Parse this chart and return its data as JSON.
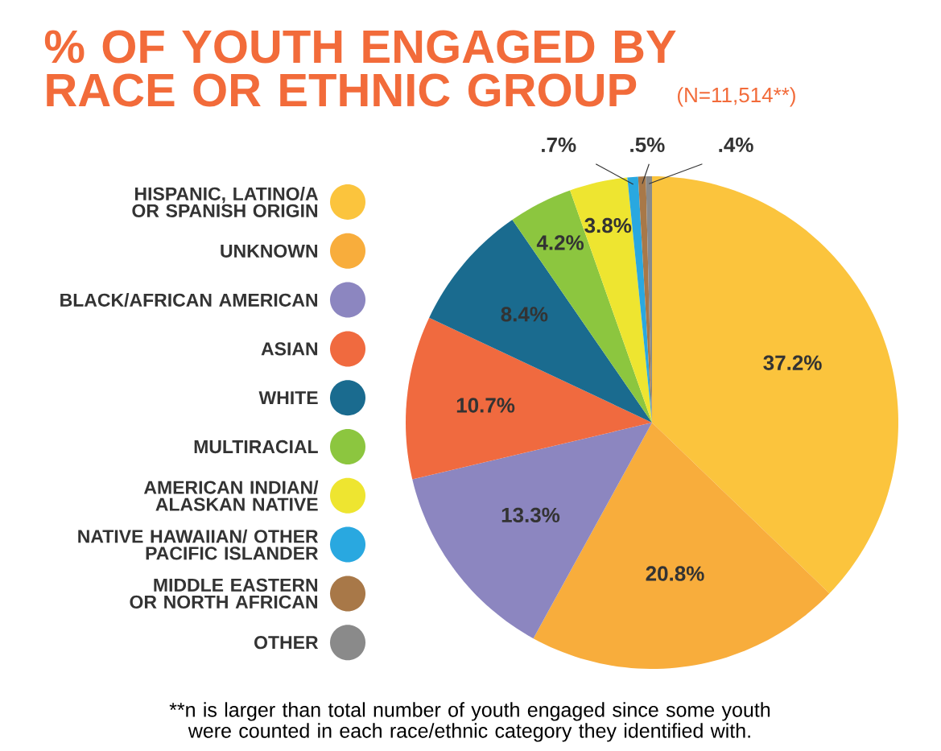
{
  "chart_data": {
    "type": "pie",
    "title": "% OF YOUTH ENGAGED BY RACE OR ETHNIC GROUP",
    "subtitle": "(N=11,514**)",
    "categories": [
      "HISPANIC, LATINO/A OR SPANISH ORIGIN",
      "UNKNOWN",
      "BLACK/AFRICAN AMERICAN",
      "ASIAN",
      "WHITE",
      "MULTIRACIAL",
      "AMERICAN INDIAN/ ALASKAN NATIVE",
      "NATIVE HAWAIIAN/ OTHER PACIFIC ISLANDER",
      "MIDDLE EASTERN OR NORTH AFRICAN",
      "OTHER"
    ],
    "values": [
      37.2,
      20.8,
      13.3,
      10.7,
      8.4,
      4.2,
      3.8,
      0.7,
      0.5,
      0.4
    ],
    "colors": [
      "#fbc43d",
      "#f8ad3c",
      "#8c86c0",
      "#f06a3f",
      "#1a6b8f",
      "#8cc63f",
      "#eee530",
      "#29a8e0",
      "#a87848",
      "#8a8a8a"
    ],
    "value_labels": [
      "37.2%",
      "20.8%",
      "13.3%",
      "10.7%",
      "8.4%",
      "4.2%",
      "3.8%",
      ".7%",
      ".5%",
      ".4%"
    ],
    "legend": "left",
    "annotations": [
      "**n is larger than total number of youth engaged since some youth were counted in each race/ethnic category they identified with."
    ]
  }
}
